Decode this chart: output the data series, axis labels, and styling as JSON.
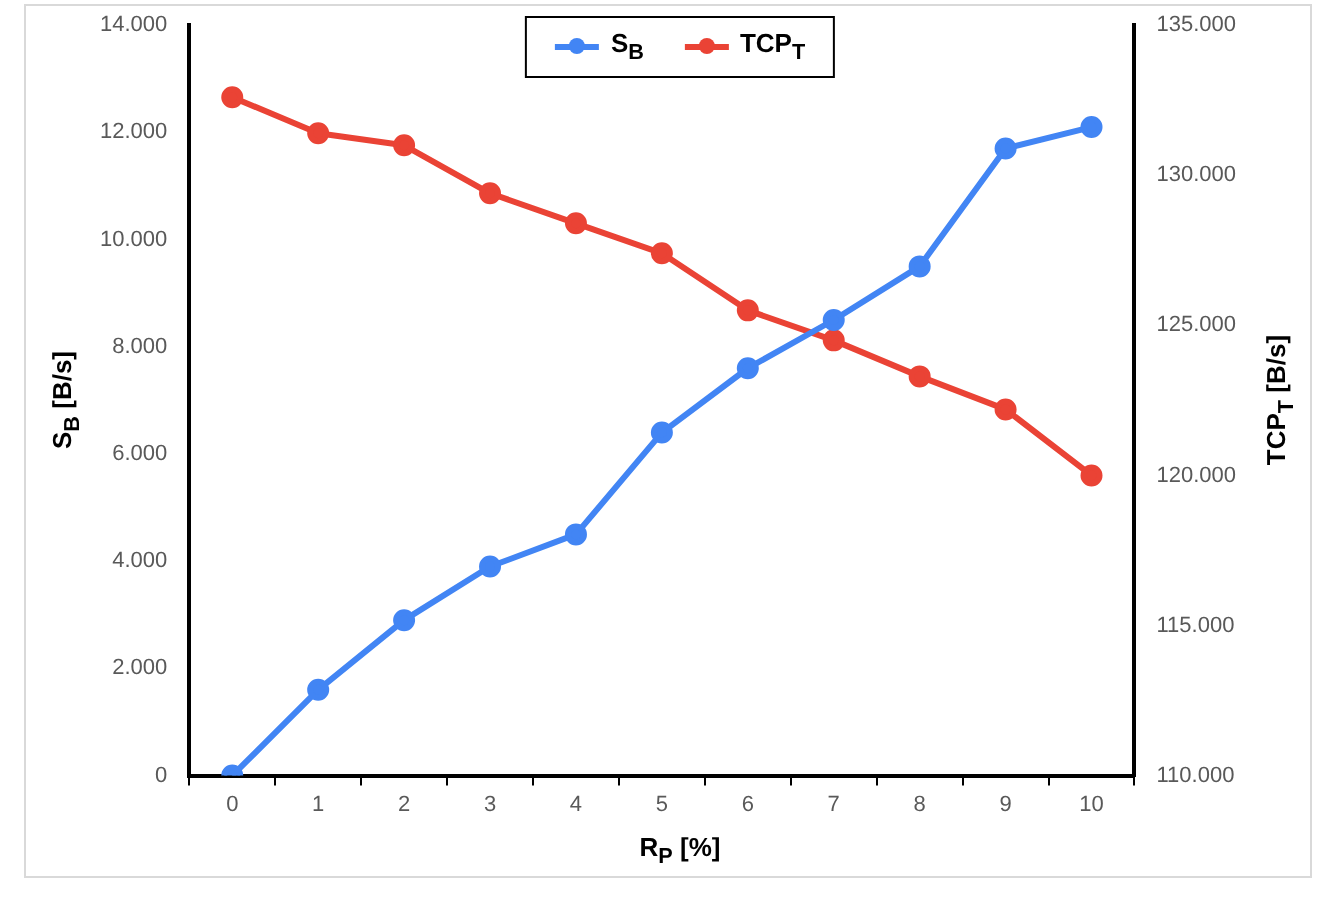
{
  "chart_data": {
    "type": "line",
    "xlabel": "R$_{P}$ [%]",
    "ylabel": "S$_{B}$ [B/s]",
    "y2label": "TCP$_{T}$ [B/s]",
    "categories": [
      "0",
      "1",
      "2",
      "3",
      "4",
      "5",
      "6",
      "7",
      "8",
      "9",
      "10"
    ],
    "series": [
      {
        "name": "S$_{B}$",
        "color": "#4285f4",
        "values": [
          0,
          1600,
          2900,
          3900,
          4500,
          6400,
          7600,
          8500,
          9500,
          11700,
          12100
        ]
      },
      {
        "name": "TCP$_{T}$",
        "color": "#ea4335",
        "axis": "y2",
        "values": [
          132600,
          131400,
          131000,
          129400,
          128400,
          127400,
          125500,
          124500,
          123300,
          122200,
          120000
        ]
      }
    ],
    "ylim": [
      0,
      14000
    ],
    "yticks": [
      0,
      {
        "value": 2000,
        "label": "2.000"
      },
      {
        "value": 4000,
        "label": "4.000"
      },
      {
        "value": 6000,
        "label": "6.000"
      },
      {
        "value": 8000,
        "label": "8.000"
      },
      {
        "value": 10000,
        "label": "10.000"
      },
      {
        "value": 12000,
        "label": "12.000"
      },
      {
        "value": 14000,
        "label": "14.000"
      }
    ],
    "y2lim": [
      110000,
      135000
    ],
    "y2ticks": [
      {
        "value": 110000,
        "label": "110.000"
      },
      {
        "value": 115000,
        "label": "115.000"
      },
      {
        "value": 120000,
        "label": "120.000"
      },
      {
        "value": 125000,
        "label": "125.000"
      },
      {
        "value": 130000,
        "label": "130.000"
      },
      {
        "value": 135000,
        "label": "135.000"
      }
    ],
    "grid": false,
    "legend": "top",
    "marker": "circle",
    "line_style": "solid"
  }
}
